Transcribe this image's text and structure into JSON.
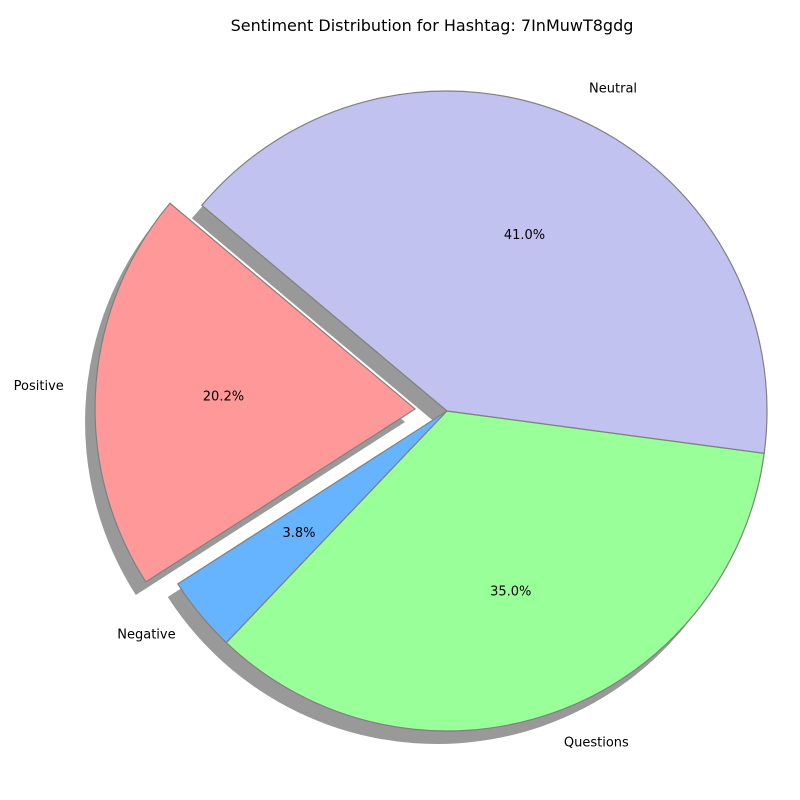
{
  "chart_data": {
    "type": "pie",
    "title": "Sentiment Distribution for Hashtag: 7InMuwT8gdg",
    "slices": [
      {
        "label": "Positive",
        "value": 20.2,
        "pct_label": "20.2%",
        "color": "#ff9999",
        "exploded": true
      },
      {
        "label": "Negative",
        "value": 3.8,
        "pct_label": "3.8%",
        "color": "#66b3ff",
        "exploded": false
      },
      {
        "label": "Questions",
        "value": 35.0,
        "pct_label": "35.0%",
        "color": "#99ff99",
        "exploded": false
      },
      {
        "label": "Neutral",
        "value": 41.0,
        "pct_label": "41.0%",
        "color": "#c2c2f0",
        "exploded": false
      }
    ],
    "shadow": true,
    "edge_color": "#808080"
  }
}
